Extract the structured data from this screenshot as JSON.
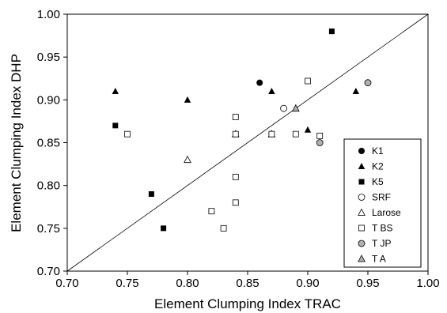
{
  "chart_data": {
    "type": "scatter",
    "title": "",
    "xlabel": "Element Clumping Index TRAC",
    "ylabel": "Element Clumping Index DHP",
    "xlim": [
      0.7,
      1.0
    ],
    "ylim": [
      0.7,
      1.0
    ],
    "xticks": [
      "0.70",
      "0.75",
      "0.80",
      "0.85",
      "0.90",
      "0.95",
      "1.00"
    ],
    "yticks": [
      "0.70",
      "0.75",
      "0.80",
      "0.85",
      "0.90",
      "0.95",
      "1.00"
    ],
    "grid": false,
    "legend_position": "bottom-right",
    "reference_line": "1:1",
    "series": [
      {
        "name": "K1",
        "marker": "circle",
        "fill": "#000000",
        "points": [
          [
            0.86,
            0.92
          ]
        ]
      },
      {
        "name": "K2",
        "marker": "triangle",
        "fill": "#000000",
        "points": [
          [
            0.74,
            0.91
          ],
          [
            0.8,
            0.9
          ],
          [
            0.87,
            0.91
          ],
          [
            0.9,
            0.865
          ],
          [
            0.94,
            0.91
          ]
        ]
      },
      {
        "name": "K5",
        "marker": "square",
        "fill": "#000000",
        "points": [
          [
            0.74,
            0.87
          ],
          [
            0.77,
            0.79
          ],
          [
            0.78,
            0.75
          ],
          [
            0.92,
            0.98
          ]
        ]
      },
      {
        "name": "SRF",
        "marker": "circle",
        "fill": "#ffffff",
        "points": [
          [
            0.88,
            0.89
          ]
        ]
      },
      {
        "name": "Larose",
        "marker": "triangle",
        "fill": "#ffffff",
        "points": [
          [
            0.8,
            0.83
          ],
          [
            0.84,
            0.86
          ],
          [
            0.87,
            0.86
          ]
        ]
      },
      {
        "name": "T BS",
        "marker": "square",
        "fill": "#ffffff",
        "points": [
          [
            0.75,
            0.86
          ],
          [
            0.82,
            0.77
          ],
          [
            0.83,
            0.75
          ],
          [
            0.84,
            0.88
          ],
          [
            0.84,
            0.86
          ],
          [
            0.84,
            0.81
          ],
          [
            0.84,
            0.78
          ],
          [
            0.87,
            0.86
          ],
          [
            0.89,
            0.86
          ],
          [
            0.9,
            0.922
          ],
          [
            0.91,
            0.858
          ]
        ]
      },
      {
        "name": "T JP",
        "marker": "circle",
        "fill": "#b0b0b0",
        "points": [
          [
            0.91,
            0.85
          ],
          [
            0.95,
            0.92
          ]
        ]
      },
      {
        "name": "T A",
        "marker": "triangle",
        "fill": "#b0b0b0",
        "points": [
          [
            0.89,
            0.89
          ]
        ]
      }
    ]
  }
}
